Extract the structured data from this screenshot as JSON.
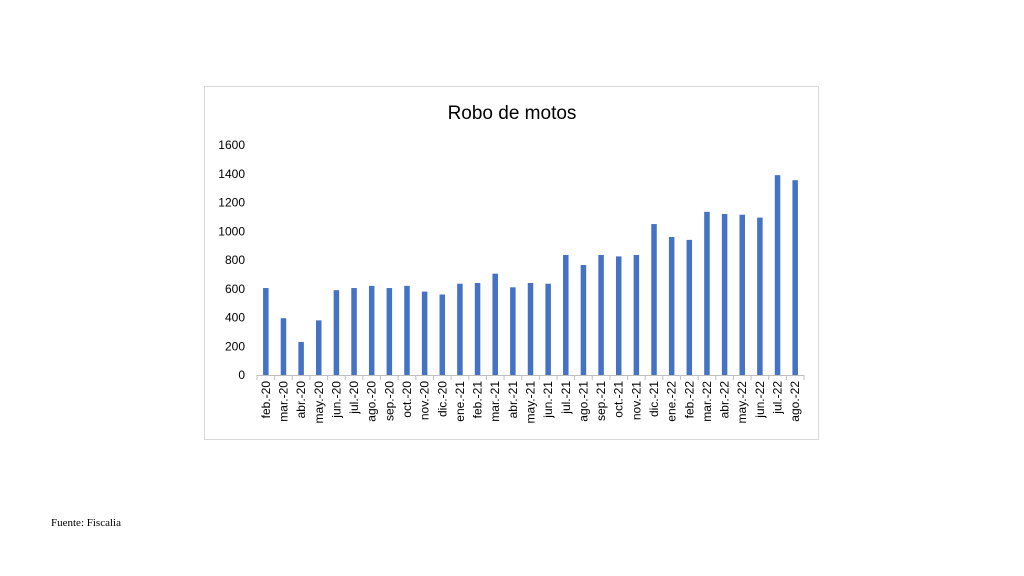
{
  "source_note": "Fuente: Fiscalia",
  "chart_data": {
    "type": "bar",
    "title": "Robo de motos",
    "xlabel": "",
    "ylabel": "",
    "ylim": [
      0,
      1600
    ],
    "yticks": [
      0,
      200,
      400,
      600,
      800,
      1000,
      1200,
      1400,
      1600
    ],
    "grid": false,
    "legend": "none",
    "bar_color": "#4472c4",
    "categories": [
      "feb.-20",
      "mar.-20",
      "abr.-20",
      "may.-20",
      "jun.-20",
      "jul.-20",
      "ago.-20",
      "sep.-20",
      "oct.-20",
      "nov.-20",
      "dic.-20",
      "ene.-21",
      "feb.-21",
      "mar.-21",
      "abr.-21",
      "may.-21",
      "jun.-21",
      "jul.-21",
      "ago.-21",
      "sep.-21",
      "oct.-21",
      "nov.-21",
      "dic.-21",
      "ene.-22",
      "feb.-22",
      "mar.-22",
      "abr.-22",
      "may.-22",
      "jun.-22",
      "jul.-22",
      "ago.-22"
    ],
    "values": [
      605,
      395,
      230,
      380,
      590,
      605,
      620,
      605,
      620,
      580,
      560,
      635,
      640,
      705,
      610,
      640,
      635,
      835,
      765,
      835,
      825,
      835,
      1050,
      960,
      940,
      1135,
      1120,
      1115,
      1095,
      1390,
      1355
    ]
  }
}
